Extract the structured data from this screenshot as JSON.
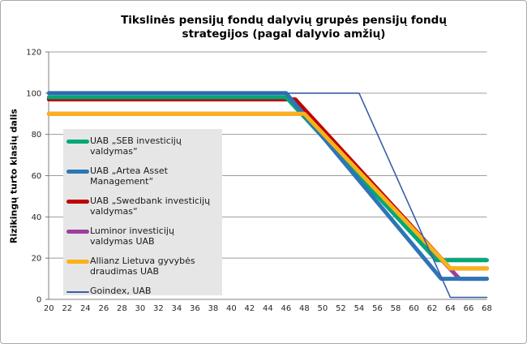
{
  "title": {
    "line1": "Tikslinės pensijų fondų dalyvių grupės pensijų fondų",
    "line2": "strategijos (pagal dalyvio amžių)",
    "full": "Tikslinės pensijų fondų dalyvių grupės pensijų fondų strategijos (pagal dalyvio amžių)"
  },
  "y_axis": {
    "label": "Rizikingų turto klasių dalis",
    "ticks": [
      0,
      20,
      40,
      60,
      80,
      100,
      120
    ],
    "min": 0,
    "max": 120
  },
  "x_axis": {
    "ticks": [
      20,
      22,
      24,
      26,
      28,
      30,
      32,
      34,
      36,
      38,
      40,
      42,
      44,
      46,
      48,
      50,
      52,
      54,
      56,
      58,
      60,
      62,
      64,
      66,
      68
    ]
  },
  "style": {
    "grid_color": "#9c9c9c",
    "axis_color": "#7f7f7f",
    "tick_label_color": "#262626",
    "legend_bg": "#e6e6e6",
    "title_color": "#000000",
    "background": "#ffffff",
    "border_color": "#ababab"
  },
  "chart_data": {
    "type": "line",
    "title": "Tikslinės pensijų fondų dalyvių grupės pensijų fondų strategijos (pagal dalyvio amžių)",
    "xlabel": "",
    "ylabel": "Rizikingų turto klasių dalis",
    "xlim": [
      20,
      68
    ],
    "ylim": [
      0,
      120
    ],
    "x_tick_step": 2,
    "y_tick_step": 20,
    "grid": "horizontal",
    "legend_position": "overlay-middle-left",
    "series": [
      {
        "name": "UAB „SEB investicijų valdymas“",
        "color": "#00a878",
        "stroke_width": 5,
        "points": [
          [
            20,
            98
          ],
          [
            46,
            98
          ],
          [
            62.5,
            19
          ],
          [
            68,
            19
          ]
        ]
      },
      {
        "name": "UAB „Artea Asset Management“",
        "color": "#2e75b6",
        "stroke_width": 5,
        "points": [
          [
            20,
            100
          ],
          [
            46,
            100
          ],
          [
            63,
            10
          ],
          [
            68,
            10
          ]
        ]
      },
      {
        "name": "UAB „Swedbank investicijų valdymas“",
        "color": "#c00000",
        "stroke_width": 5,
        "points": [
          [
            20,
            97
          ],
          [
            47,
            97
          ],
          [
            64,
            15
          ],
          [
            68,
            15
          ]
        ]
      },
      {
        "name": "Luminor investicijų valdymas UAB",
        "color": "#9c3f9c",
        "stroke_width": 5,
        "points": [
          [
            20,
            90
          ],
          [
            48,
            90
          ],
          [
            65,
            10
          ],
          [
            68,
            10
          ]
        ]
      },
      {
        "name": "Allianz Lietuva gyvybės draudimas UAB",
        "color": "#fbb117",
        "stroke_width": 5,
        "points": [
          [
            20,
            90
          ],
          [
            48,
            90
          ],
          [
            64,
            15
          ],
          [
            68,
            15
          ]
        ]
      },
      {
        "name": "Goindex, UAB",
        "color": "#3b5ea9",
        "stroke_width": 1.6,
        "points": [
          [
            20,
            100
          ],
          [
            54,
            100
          ],
          [
            64,
            0
          ],
          [
            68,
            0
          ]
        ]
      }
    ],
    "draw_order": [
      2,
      3,
      0,
      1,
      4,
      5
    ]
  }
}
